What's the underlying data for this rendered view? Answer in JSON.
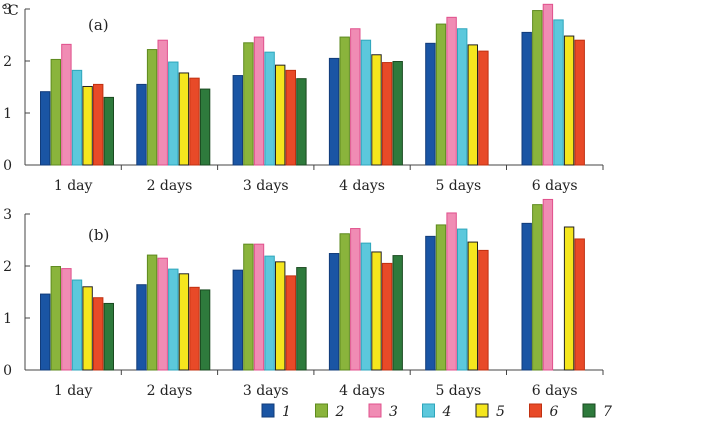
{
  "unit_label": "°C",
  "legend": {
    "labels": [
      "1",
      "2",
      "3",
      "4",
      "5",
      "6",
      "7"
    ],
    "colors": [
      "#1a55a4",
      "#8ab43c",
      "#f08cb4",
      "#5cc8dc",
      "#f5e61e",
      "#e84a28",
      "#2e7a3c"
    ]
  },
  "chart_data": [
    {
      "type": "bar",
      "panel_label": "(a)",
      "categories": [
        "1  day",
        "2  days",
        "3  days",
        "4  days",
        "5  days",
        "6  days"
      ],
      "ylim": [
        0,
        3
      ],
      "yticks": [
        "0",
        "1",
        "2",
        "3"
      ],
      "series": [
        {
          "name": "1",
          "values": [
            1.41,
            1.55,
            1.72,
            2.05,
            2.34,
            2.55
          ]
        },
        {
          "name": "2",
          "values": [
            2.03,
            2.22,
            2.35,
            2.46,
            2.71,
            2.97
          ]
        },
        {
          "name": "3",
          "values": [
            2.32,
            2.4,
            2.46,
            2.62,
            2.84,
            3.09
          ]
        },
        {
          "name": "4",
          "values": [
            1.82,
            1.98,
            2.17,
            2.4,
            2.62,
            2.79
          ]
        },
        {
          "name": "5",
          "values": [
            1.51,
            1.77,
            1.92,
            2.12,
            2.31,
            2.48
          ]
        },
        {
          "name": "6",
          "values": [
            1.55,
            1.67,
            1.82,
            1.97,
            2.19,
            2.4
          ]
        },
        {
          "name": "7",
          "values": [
            1.3,
            1.46,
            1.66,
            1.99,
            null,
            null
          ]
        }
      ]
    },
    {
      "type": "bar",
      "panel_label": "(b)",
      "categories": [
        "1  day",
        "2  days",
        "3  days",
        "4  days",
        "5  days",
        "6  days"
      ],
      "ylim": [
        0,
        3
      ],
      "yticks": [
        "0",
        "1",
        "2",
        "3"
      ],
      "series": [
        {
          "name": "1",
          "values": [
            1.46,
            1.64,
            1.92,
            2.24,
            2.57,
            2.82
          ]
        },
        {
          "name": "2",
          "values": [
            1.99,
            2.21,
            2.42,
            2.62,
            2.79,
            3.18
          ]
        },
        {
          "name": "3",
          "values": [
            1.95,
            2.15,
            2.42,
            2.72,
            3.02,
            3.28
          ]
        },
        {
          "name": "4",
          "values": [
            1.73,
            1.94,
            2.19,
            2.44,
            2.71,
            null
          ]
        },
        {
          "name": "5",
          "values": [
            1.6,
            1.85,
            2.08,
            2.27,
            2.46,
            2.75
          ]
        },
        {
          "name": "6",
          "values": [
            1.39,
            1.59,
            1.81,
            2.05,
            2.3,
            2.52
          ]
        },
        {
          "name": "7",
          "values": [
            1.28,
            1.54,
            1.97,
            2.2,
            null,
            null
          ]
        }
      ]
    }
  ]
}
